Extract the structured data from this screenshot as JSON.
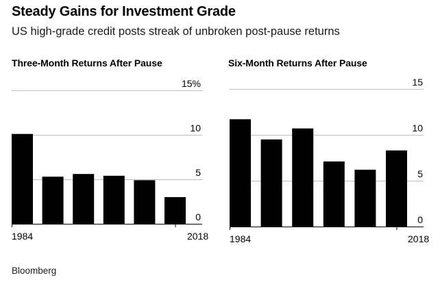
{
  "title": "Steady Gains for Investment Grade",
  "subtitle": "US high-grade credit posts streak of unbroken post-pause returns",
  "source": "Bloomberg",
  "bar_color": "#000000",
  "chart_data": [
    {
      "type": "bar",
      "title": "Three-Month Returns After Pause",
      "categories": [
        "1984",
        "",
        "",
        "",
        "",
        "2018"
      ],
      "values": [
        10.1,
        5.3,
        5.6,
        5.4,
        4.9,
        3.0
      ],
      "ylim": [
        0,
        15
      ],
      "yticks": [
        0,
        5,
        10,
        15
      ],
      "ytick_labels": [
        "0",
        "5",
        "10",
        "15%"
      ],
      "xtick_labels": [
        "1984",
        "2018"
      ],
      "xlabel": "",
      "ylabel": ""
    },
    {
      "type": "bar",
      "title": "Six-Month Returns After Pause",
      "categories": [
        "1984",
        "",
        "",
        "",
        "",
        "2018"
      ],
      "values": [
        11.7,
        9.5,
        10.7,
        7.1,
        6.2,
        8.3
      ],
      "ylim": [
        0,
        15
      ],
      "yticks": [
        0,
        5,
        10,
        15
      ],
      "ytick_labels": [
        "0",
        "5",
        "10",
        "15"
      ],
      "xtick_labels": [
        "1984",
        "2018"
      ],
      "xlabel": "",
      "ylabel": ""
    }
  ]
}
